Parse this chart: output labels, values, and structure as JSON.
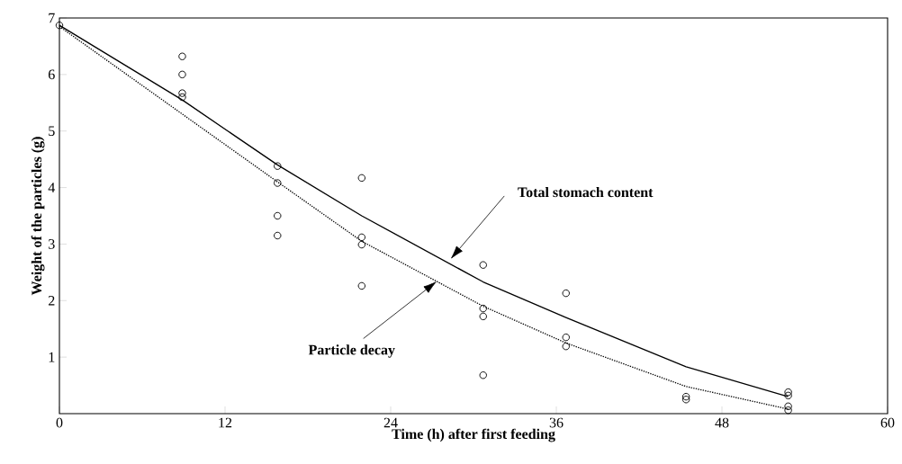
{
  "chart_data": {
    "type": "scatter",
    "xlabel": "Time (h) after first feeding",
    "ylabel": "Weight of the particles (g)",
    "xlim": [
      0,
      60
    ],
    "xticks": [
      0,
      12,
      24,
      36,
      48,
      60
    ],
    "ylim": [
      0,
      7
    ],
    "yticks": [
      1,
      2,
      3,
      4,
      5,
      6,
      7
    ],
    "series": [
      {
        "color": "#000000",
        "marker": "circle",
        "x": [
          0,
          8.9,
          8.9,
          8.9,
          8.9,
          15.8,
          15.8,
          15.8,
          15.8,
          21.9,
          21.9,
          21.9,
          21.9,
          30.7,
          30.7,
          30.7,
          30.7,
          36.7,
          36.7,
          36.7,
          45.4,
          45.4,
          52.8,
          52.8,
          52.8,
          52.8
        ],
        "values": [
          6.87,
          6.32,
          6.0,
          5.67,
          5.6,
          4.38,
          4.08,
          3.5,
          3.15,
          4.17,
          3.12,
          2.99,
          2.26,
          2.63,
          1.86,
          1.72,
          0.68,
          2.13,
          1.35,
          1.19,
          0.3,
          0.25,
          0.38,
          0.32,
          0.13,
          0.06
        ]
      },
      {
        "type": "line",
        "color": "#000000",
        "marker": "none",
        "line_style": "solid",
        "x": [
          0,
          8.9,
          15.8,
          21.9,
          30.7,
          36.7,
          45.4,
          52.8
        ],
        "values": [
          6.87,
          5.55,
          4.4,
          3.5,
          2.33,
          1.7,
          0.83,
          0.3
        ]
      },
      {
        "type": "line",
        "color": "#000000",
        "marker": "none",
        "line_style": "dotted",
        "x": [
          0,
          8.9,
          15.8,
          21.9,
          30.7,
          36.7,
          45.4,
          52.8
        ],
        "values": [
          6.85,
          5.3,
          4.1,
          3.05,
          1.9,
          1.25,
          0.48,
          0.08
        ]
      }
    ],
    "annotations": [
      "Total stomach content",
      "Particle decay"
    ]
  }
}
